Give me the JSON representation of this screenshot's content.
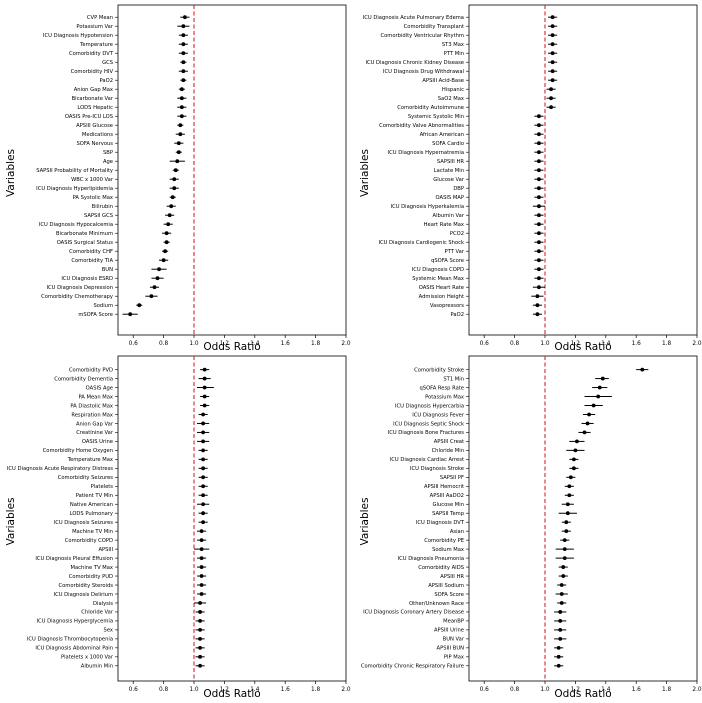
{
  "chart_data": [
    {
      "type": "scatter",
      "title": "",
      "xlabel": "Odds Ratio",
      "ylabel": "Variables",
      "xlim": [
        0.5,
        2.0
      ],
      "xticks": [
        "0.6",
        "0.8",
        "1.0",
        "1.2",
        "1.4",
        "1.6",
        "1.8",
        "2.0"
      ],
      "reference_line": 1.0,
      "reference_color": "#d62728",
      "variables": [
        "CVP Mean",
        "Potassium Var",
        "ICU Diagnosis Hypotension",
        "Temperature",
        "Comorbidity DVT",
        "GCS",
        "Comorbidity HIV",
        "PaO2",
        "Anion Gap Max",
        "Bicarbonate Var",
        "LODS Hepatic",
        "OASIS Pre-ICU LOS",
        "APSIII Glucose",
        "Medications",
        "SOFA Nervous",
        "SBP",
        "Age",
        "SAPSII Probability of Mortality",
        "WBC x 1000 Var",
        "ICU Diagnosis Hyperlipidemia",
        "PA Systolic Max",
        "Bilirubin",
        "SAPSII GCS",
        "ICU Diagnosis Hypocalcemia",
        "Bicarbonate Minimum",
        "OASIS Surgical Status",
        "Comorbidity CHF",
        "Comorbidity TIA",
        "BUN",
        "ICU Diagnosis ESRD",
        "ICU Diagnosis Depression",
        "Comorbidity Chemotherapy",
        "Sodium",
        "mSOFA Score"
      ],
      "odds_ratio": [
        0.94,
        0.93,
        0.93,
        0.93,
        0.93,
        0.93,
        0.93,
        0.93,
        0.92,
        0.92,
        0.92,
        0.92,
        0.91,
        0.91,
        0.9,
        0.9,
        0.89,
        0.88,
        0.87,
        0.87,
        0.86,
        0.85,
        0.84,
        0.83,
        0.82,
        0.82,
        0.81,
        0.8,
        0.77,
        0.76,
        0.74,
        0.72,
        0.64,
        0.58
      ],
      "ci_low": [
        0.91,
        0.89,
        0.9,
        0.9,
        0.9,
        0.91,
        0.9,
        0.91,
        0.9,
        0.89,
        0.89,
        0.89,
        0.89,
        0.88,
        0.87,
        0.88,
        0.84,
        0.86,
        0.84,
        0.84,
        0.84,
        0.82,
        0.81,
        0.8,
        0.79,
        0.8,
        0.79,
        0.77,
        0.72,
        0.72,
        0.71,
        0.68,
        0.62,
        0.53
      ],
      "ci_high": [
        0.97,
        0.97,
        0.96,
        0.96,
        0.96,
        0.95,
        0.96,
        0.95,
        0.94,
        0.95,
        0.95,
        0.95,
        0.93,
        0.94,
        0.93,
        0.92,
        0.94,
        0.9,
        0.9,
        0.9,
        0.88,
        0.88,
        0.87,
        0.86,
        0.85,
        0.84,
        0.83,
        0.83,
        0.82,
        0.8,
        0.77,
        0.76,
        0.66,
        0.63
      ]
    },
    {
      "type": "scatter",
      "title": "",
      "xlabel": "Odds Ratio",
      "ylabel": "Variables",
      "xlim": [
        0.5,
        2.0
      ],
      "xticks": [
        "0.6",
        "0.8",
        "1.0",
        "1.2",
        "1.4",
        "1.6",
        "1.8",
        "2.0"
      ],
      "reference_line": 1.0,
      "reference_color": "#d62728",
      "variables": [
        "ICU Diagnosis Acute Pulmonary Edema",
        "Comorbidity Transplant",
        "Comorbidity Ventricular Rhythm",
        "ST3 Max",
        "PTT Min",
        "ICU Diagnosis Chronic Kidney Disease",
        "ICU Diagnosis Drug Withdrawal",
        "APSIII Acid-Base",
        "Hispanic",
        "SaO2 Max",
        "Comorbidity Autoimmune",
        "Systemic Systolic Min",
        "Comorbidity Valve Abnormalities",
        "African American",
        "SOFA Cardio",
        "ICU Diagnosis Hypernatremia",
        "SAPSIII HR",
        "Lactate Min",
        "Glucose Var",
        "DBP",
        "OASIS MAP",
        "ICU Diagnosis Hyperkalemia",
        "Albumin Var",
        "Heart Rate Max",
        "PCO2",
        "ICU Diagnosis Cardiogenic Shock",
        "PTT Var",
        "qSOFA Score",
        "ICU Diagnosis COPD",
        "Systemic Mean Max",
        "OASIS Heart Rate",
        "Admission Height",
        "Vasopressors",
        "PaO2"
      ],
      "odds_ratio": [
        1.05,
        1.05,
        1.05,
        1.05,
        1.05,
        1.05,
        1.05,
        1.05,
        1.04,
        1.04,
        1.04,
        0.96,
        0.96,
        0.96,
        0.96,
        0.96,
        0.96,
        0.96,
        0.96,
        0.96,
        0.96,
        0.96,
        0.96,
        0.96,
        0.96,
        0.96,
        0.96,
        0.96,
        0.96,
        0.96,
        0.96,
        0.95,
        0.95,
        0.95
      ],
      "ci_low": [
        1.02,
        1.02,
        1.02,
        1.02,
        1.02,
        1.02,
        1.02,
        1.02,
        1.01,
        1.01,
        1.01,
        0.93,
        0.93,
        0.93,
        0.93,
        0.93,
        0.93,
        0.93,
        0.93,
        0.93,
        0.93,
        0.92,
        0.93,
        0.93,
        0.93,
        0.93,
        0.93,
        0.93,
        0.93,
        0.93,
        0.92,
        0.91,
        0.92,
        0.92
      ],
      "ci_high": [
        1.08,
        1.08,
        1.08,
        1.08,
        1.08,
        1.08,
        1.08,
        1.08,
        1.07,
        1.07,
        1.07,
        0.99,
        0.99,
        0.99,
        0.99,
        0.99,
        0.99,
        0.99,
        0.99,
        0.99,
        0.99,
        1.0,
        0.99,
        0.99,
        0.99,
        0.99,
        0.99,
        0.99,
        0.99,
        0.99,
        1.0,
        0.99,
        0.98,
        0.98
      ]
    },
    {
      "type": "scatter",
      "title": "",
      "xlabel": "Odds Ratio",
      "ylabel": "Variables",
      "xlim": [
        0.5,
        2.0
      ],
      "xticks": [
        "0.6",
        "0.8",
        "1.0",
        "1.2",
        "1.4",
        "1.6",
        "1.8",
        "2.0"
      ],
      "reference_line": 1.0,
      "reference_color": "#d62728",
      "variables": [
        "Comorbidity PVD",
        "Comorbidity Dementia",
        "OASIS Age",
        "PA Mean Max",
        "PA Diastolic Max",
        "Respiration Max",
        "Anion Gap Var",
        "Creatinine Var",
        "OASIS Urine",
        "Comorbidity Home Oxygen",
        "Temperature Max",
        "ICU Diagnosis Acute Respiratory Distress",
        "Comorbidity Seizures",
        "Platelets",
        "Patient TV Min",
        "Native American",
        "LODS Pulmonary",
        "ICU Diagnosis Seizures",
        "Machine TV Min",
        "Comorbidity COPD",
        "APSIII",
        "ICU Diagnosis Pleural Effusion",
        "Machine TV Max",
        "Comorbidity PUD",
        "Comorbidity Steroids",
        "ICU Diagnosis Delirium",
        "Dialysis",
        "Chloride Var",
        "ICU Diagnosis Hyperglycemia",
        "Sex",
        "ICU Diagnosis Thrombocytopenia",
        "ICU Diagnosis Abdominal Pain",
        "Platelets x 1000 Var",
        "Albumin Min"
      ],
      "odds_ratio": [
        1.07,
        1.07,
        1.07,
        1.07,
        1.07,
        1.06,
        1.06,
        1.06,
        1.06,
        1.06,
        1.06,
        1.06,
        1.06,
        1.06,
        1.06,
        1.06,
        1.06,
        1.06,
        1.05,
        1.05,
        1.05,
        1.05,
        1.05,
        1.05,
        1.05,
        1.05,
        1.04,
        1.04,
        1.04,
        1.04,
        1.04,
        1.04,
        1.04,
        1.04
      ],
      "ci_low": [
        1.04,
        1.03,
        1.02,
        1.04,
        1.04,
        1.03,
        1.02,
        1.02,
        1.02,
        1.03,
        1.03,
        1.03,
        1.03,
        1.03,
        1.03,
        1.02,
        1.03,
        1.03,
        1.02,
        1.02,
        1.0,
        1.02,
        1.02,
        1.02,
        1.02,
        1.02,
        1.0,
        1.01,
        1.01,
        1.01,
        1.01,
        1.01,
        1.01,
        1.01
      ],
      "ci_high": [
        1.1,
        1.11,
        1.13,
        1.1,
        1.1,
        1.09,
        1.1,
        1.1,
        1.1,
        1.09,
        1.09,
        1.09,
        1.09,
        1.09,
        1.09,
        1.1,
        1.09,
        1.09,
        1.08,
        1.08,
        1.1,
        1.08,
        1.08,
        1.08,
        1.08,
        1.08,
        1.08,
        1.07,
        1.07,
        1.07,
        1.07,
        1.07,
        1.07,
        1.07
      ]
    },
    {
      "type": "scatter",
      "title": "",
      "xlabel": "Odds Ratio",
      "ylabel": "Variables",
      "xlim": [
        0.5,
        2.0
      ],
      "xticks": [
        "0.6",
        "0.8",
        "1.0",
        "1.2",
        "1.4",
        "1.6",
        "1.8",
        "2.0"
      ],
      "reference_line": 1.0,
      "reference_color": "#d62728",
      "variables": [
        "Comorbidity Stroke",
        "ST1 Min",
        "qSOFA Resp Rate",
        "Potassium Max",
        "ICU Diagnosis Hypercarbia",
        "ICU Diagnosis Fever",
        "ICU Diagnosis Septic Shock",
        "ICU Diagnosis Bone Fractures",
        "APSIII Creat",
        "Chloride Min",
        "ICU Diagnosis Cardiac Arrest",
        "ICU Diagnosis Stroke",
        "SAPSII PF",
        "APSIII Hemocrit",
        "APSIII AaDO2",
        "Glucose Min",
        "SAPSII Temp",
        "ICU Diagnosis DVT",
        "Asian",
        "Comorbidity PE",
        "Sodium Max",
        "ICU Diagnosis Pneumonia",
        "Comorbidity AIDS",
        "APSIII HR",
        "APSIII Sodium",
        "SOFA Score",
        "Other/Unknown Race",
        "ICU Diagnosis Coronary Artery Disease",
        "MeanBP",
        "APSIII Urine",
        "BUN Var",
        "APSIII BUN",
        "PIP Max",
        "Comorbidity Chronic Respiratory Failure"
      ],
      "odds_ratio": [
        1.64,
        1.38,
        1.36,
        1.35,
        1.32,
        1.29,
        1.28,
        1.26,
        1.21,
        1.2,
        1.19,
        1.19,
        1.17,
        1.16,
        1.16,
        1.15,
        1.15,
        1.14,
        1.14,
        1.13,
        1.13,
        1.13,
        1.12,
        1.12,
        1.11,
        1.11,
        1.11,
        1.1,
        1.1,
        1.1,
        1.1,
        1.09,
        1.09,
        1.09
      ],
      "ci_low": [
        1.6,
        1.33,
        1.31,
        1.26,
        1.26,
        1.25,
        1.24,
        1.22,
        1.16,
        1.14,
        1.16,
        1.16,
        1.14,
        1.13,
        1.13,
        1.11,
        1.09,
        1.11,
        1.11,
        1.1,
        1.07,
        1.07,
        1.09,
        1.09,
        1.08,
        1.07,
        1.08,
        1.06,
        1.06,
        1.06,
        1.06,
        1.06,
        1.06,
        1.06
      ],
      "ci_high": [
        1.68,
        1.42,
        1.41,
        1.44,
        1.38,
        1.33,
        1.32,
        1.3,
        1.26,
        1.26,
        1.22,
        1.22,
        1.2,
        1.19,
        1.19,
        1.19,
        1.21,
        1.17,
        1.17,
        1.16,
        1.19,
        1.19,
        1.15,
        1.15,
        1.14,
        1.15,
        1.14,
        1.14,
        1.14,
        1.14,
        1.14,
        1.12,
        1.12,
        1.12
      ]
    }
  ]
}
